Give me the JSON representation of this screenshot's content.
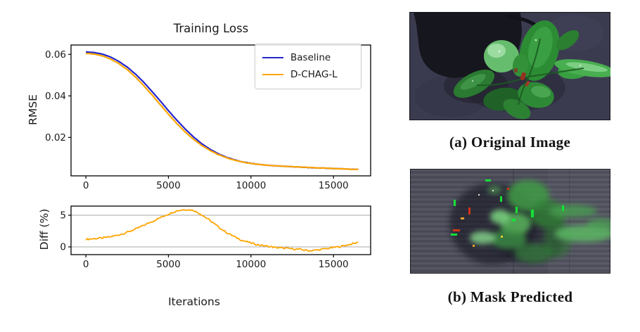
{
  "page": {
    "background": "#ffffff"
  },
  "chart_data": [
    {
      "type": "line",
      "title": "Training Loss",
      "ylabel": "RMSE",
      "x_start": 0,
      "x_step": 500,
      "xlim": [
        -900,
        17250
      ],
      "ylim": [
        0.0015,
        0.0645
      ],
      "x_ticks": [
        0,
        5000,
        10000,
        15000
      ],
      "x_tick_labels": [
        "0",
        "5000",
        "10000",
        "15000"
      ],
      "y_ticks": [
        0.02,
        0.04,
        0.06
      ],
      "y_tick_labels": [
        "0.02",
        "0.04",
        "0.06"
      ],
      "grid_y": [],
      "legend_position": "upper right",
      "series": [
        {
          "name": "Baseline",
          "color": "#2525cd",
          "width": 2.2,
          "noise": 5e-05,
          "values": [
            0.0612,
            0.0609,
            0.0601,
            0.0587,
            0.0566,
            0.0539,
            0.0505,
            0.0466,
            0.0422,
            0.0376,
            0.0329,
            0.0284,
            0.0242,
            0.0204,
            0.0171,
            0.0144,
            0.0122,
            0.0105,
            0.0092,
            0.0082,
            0.0075,
            0.007,
            0.0066,
            0.0063,
            0.0061,
            0.0059,
            0.0057,
            0.0055,
            0.0053,
            0.0052,
            0.005,
            0.0049,
            0.0047,
            0.0046
          ]
        },
        {
          "name": "D-CHAG-L",
          "color": "#ffa500",
          "width": 2.2,
          "noise": 7e-05,
          "values": [
            0.06047,
            0.06011,
            0.05926,
            0.05776,
            0.05552,
            0.05266,
            0.04909,
            0.04502,
            0.04051,
            0.03587,
            0.03119,
            0.02678,
            0.02277,
            0.01922,
            0.01623,
            0.0138,
            0.01181,
            0.01026,
            0.00905,
            0.00812,
            0.00746,
            0.00698,
            0.00659,
            0.00631,
            0.00611,
            0.00592,
            0.00572,
            0.00553,
            0.00533,
            0.00522,
            0.00501,
            0.0049,
            0.00468,
            0.00457
          ]
        }
      ]
    },
    {
      "type": "line",
      "title": "",
      "ylabel": "Diff (%)",
      "xlabel": "Iterations",
      "x_start": 0,
      "x_step": 500,
      "xlim": [
        -900,
        17250
      ],
      "ylim": [
        -1.22,
        6.44
      ],
      "x_ticks": [
        0,
        5000,
        10000,
        15000
      ],
      "x_tick_labels": [
        "0",
        "5000",
        "10000",
        "15000"
      ],
      "y_ticks": [
        0,
        5
      ],
      "y_tick_labels": [
        "0",
        "5"
      ],
      "grid_y": [
        0,
        5
      ],
      "series": [
        {
          "name": "Diff",
          "color": "#ffa500",
          "width": 1.8,
          "noise": 0.13,
          "values": [
            1.2,
            1.3,
            1.4,
            1.6,
            1.9,
            2.3,
            2.8,
            3.4,
            4.0,
            4.6,
            5.2,
            5.7,
            5.9,
            5.8,
            5.1,
            4.2,
            3.2,
            2.3,
            1.6,
            1.0,
            0.6,
            0.3,
            0.1,
            -0.1,
            -0.2,
            -0.3,
            -0.4,
            -0.6,
            -0.5,
            -0.3,
            -0.1,
            0.1,
            0.4,
            0.7
          ]
        }
      ]
    }
  ],
  "figures": {
    "original": {
      "caption": "(a) Original Image"
    },
    "mask": {
      "caption": "(b) Mask Predicted"
    }
  }
}
